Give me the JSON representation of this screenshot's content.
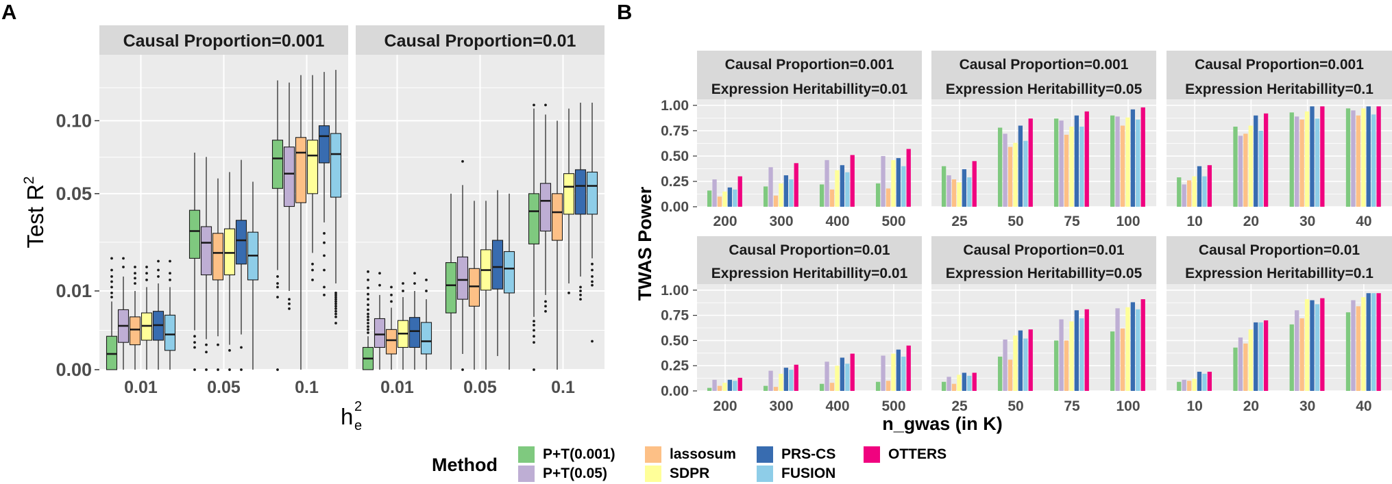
{
  "panel_labels": {
    "a": "A",
    "b": "B"
  },
  "colors": {
    "panel_bg": "#ebebeb",
    "strip_bg": "#d9d9d9",
    "grid": "#ffffff",
    "P+T(0.001)": "#7fc97f",
    "P+T(0.05)": "#beaed4",
    "lassosum": "#fdc086",
    "SDPR": "#ffff99",
    "PRS-CS": "#386cb0",
    "FUSION": "#8ecde8",
    "OTTERS": "#f0027f"
  },
  "legend": {
    "title": "Method",
    "items": [
      "P+T(0.001)",
      "P+T(0.05)",
      "lassosum",
      "SDPR",
      "PRS-CS",
      "FUSION",
      "OTTERS"
    ]
  },
  "chart_data": [
    {
      "id": "A",
      "type": "boxplot",
      "ylabel": "Test R",
      "ylabel_sup": "2",
      "xlabel": "h",
      "xlabel_sup": "2",
      "xlabel_sub": "e",
      "y_ticks": [
        "0.00",
        "0.01",
        "0.05",
        "0.10"
      ],
      "y_tick_values": [
        0.0,
        0.01,
        0.05,
        0.1
      ],
      "y_scale": "sqrt",
      "ylim": [
        0.0,
        0.16
      ],
      "categories": [
        "0.01",
        "0.05",
        "0.1"
      ],
      "methods": [
        "P+T(0.001)",
        "P+T(0.05)",
        "lassosum",
        "SDPR",
        "PRS-CS",
        "FUSION"
      ],
      "facets": [
        {
          "strip": "Causal Proportion=0.001",
          "groups": [
            [
              {
                "median": 0.0004,
                "q1": 0.0,
                "q3": 0.0018,
                "lo": 0.0,
                "hi": 0.0075,
                "out_lo": [],
                "out_hi": [
                  0.0085,
                  0.0095,
                  0.011,
                  0.0125,
                  0.014,
                  0.016,
                  0.02
                ]
              },
              {
                "median": 0.0031,
                "q1": 0.0012,
                "q3": 0.0058,
                "lo": 0.0,
                "hi": 0.014,
                "out_lo": [],
                "out_hi": [
                  0.017,
                  0.02
                ]
              },
              {
                "median": 0.0026,
                "q1": 0.001,
                "q3": 0.0045,
                "lo": 0.0,
                "hi": 0.01,
                "out_lo": [],
                "out_hi": [
                  0.012,
                  0.0135,
                  0.015,
                  0.017
                ]
              },
              {
                "median": 0.0031,
                "q1": 0.0014,
                "q3": 0.0052,
                "lo": 0.0,
                "hi": 0.011,
                "out_lo": [],
                "out_hi": [
                  0.013,
                  0.015,
                  0.017
                ]
              },
              {
                "median": 0.0032,
                "q1": 0.0014,
                "q3": 0.0055,
                "lo": 0.0,
                "hi": 0.012,
                "out_lo": [],
                "out_hi": [
                  0.014,
                  0.016,
                  0.019
                ]
              },
              {
                "median": 0.002,
                "q1": 0.0006,
                "q3": 0.0048,
                "lo": 0.0,
                "hi": 0.011,
                "out_lo": [],
                "out_hi": [
                  0.013,
                  0.015,
                  0.019
                ]
              }
            ],
            [
              {
                "median": 0.031,
                "q1": 0.02,
                "q3": 0.041,
                "lo": 0.0025,
                "hi": 0.076,
                "out_lo": [
                  0.0,
                  0.0008,
                  0.0012,
                  0.0018
                ],
                "out_hi": []
              },
              {
                "median": 0.026,
                "q1": 0.0145,
                "q3": 0.033,
                "lo": 0.0015,
                "hi": 0.073,
                "out_lo": [
                  0.0,
                  0.0005,
                  0.001
                ],
                "out_hi": []
              },
              {
                "median": 0.022,
                "q1": 0.013,
                "q3": 0.03,
                "lo": 0.0018,
                "hi": 0.059,
                "out_lo": [
                  0.0,
                  0.001
                ],
                "out_hi": []
              },
              {
                "median": 0.022,
                "q1": 0.0145,
                "q3": 0.032,
                "lo": 0.001,
                "hi": 0.063,
                "out_lo": [
                  0.0,
                  0.0006
                ],
                "out_hi": []
              },
              {
                "median": 0.027,
                "q1": 0.018,
                "q3": 0.036,
                "lo": 0.002,
                "hi": 0.071,
                "out_lo": [
                  0.0,
                  0.0008
                ],
                "out_hi": []
              },
              {
                "median": 0.021,
                "q1": 0.013,
                "q3": 0.0305,
                "lo": 0.0,
                "hi": 0.057,
                "out_lo": [],
                "out_hi": []
              }
            ],
            [
              {
                "median": 0.072,
                "q1": 0.053,
                "q3": 0.085,
                "lo": 0.016,
                "hi": 0.135,
                "out_lo": [
                  0.0,
                  0.0085,
                  0.011,
                  0.012,
                  0.014
                ],
                "out_hi": []
              },
              {
                "median": 0.062,
                "q1": 0.043,
                "q3": 0.08,
                "lo": 0.01,
                "hi": 0.133,
                "out_lo": [
                  0.006,
                  0.007,
                  0.008
                ],
                "out_hi": []
              },
              {
                "median": 0.076,
                "q1": 0.045,
                "q3": 0.087,
                "lo": 0.0,
                "hi": 0.14,
                "out_lo": [],
                "out_hi": []
              },
              {
                "median": 0.074,
                "q1": 0.05,
                "q3": 0.085,
                "lo": 0.022,
                "hi": 0.14,
                "out_lo": [
                  0.013,
                  0.016,
                  0.018
                ],
                "out_hi": []
              },
              {
                "median": 0.088,
                "q1": 0.069,
                "q3": 0.096,
                "lo": 0.035,
                "hi": 0.143,
                "out_lo": [
                  0.009,
                  0.011,
                  0.016,
                  0.021,
                  0.026,
                  0.03
                ],
                "out_hi": []
              },
              {
                "median": 0.075,
                "q1": 0.048,
                "q3": 0.09,
                "lo": 0.012,
                "hi": 0.145,
                "out_lo": [
                  0.0035,
                  0.0045,
                  0.005,
                  0.0055,
                  0.006,
                  0.0065,
                  0.007,
                  0.0075,
                  0.008,
                  0.0085,
                  0.009,
                  0.0095
                ],
                "out_hi": []
              }
            ]
          ]
        },
        {
          "strip": "Causal Proportion=0.01",
          "groups": [
            [
              {
                "median": 0.0002,
                "q1": 0.0,
                "q3": 0.0008,
                "lo": 0.0,
                "hi": 0.0018,
                "out_lo": [],
                "out_hi": [
                  0.0022,
                  0.0026,
                  0.003,
                  0.0035,
                  0.004,
                  0.0045,
                  0.005,
                  0.0058,
                  0.0068,
                  0.008,
                  0.0092,
                  0.0108,
                  0.013,
                  0.0155
                ]
              },
              {
                "median": 0.002,
                "q1": 0.0008,
                "q3": 0.0042,
                "lo": 0.0,
                "hi": 0.009,
                "out_lo": [],
                "out_hi": [
                  0.0115,
                  0.015
                ]
              },
              {
                "median": 0.0014,
                "q1": 0.0004,
                "q3": 0.0026,
                "lo": 0.0,
                "hi": 0.0062,
                "out_lo": [],
                "out_hi": [
                  0.0075,
                  0.009,
                  0.011
                ]
              },
              {
                "median": 0.0021,
                "q1": 0.0008,
                "q3": 0.0039,
                "lo": 0.0,
                "hi": 0.0085,
                "out_lo": [],
                "out_hi": [
                  0.01,
                  0.012
                ]
              },
              {
                "median": 0.0024,
                "q1": 0.0008,
                "q3": 0.0044,
                "lo": 0.0,
                "hi": 0.01,
                "out_lo": [],
                "out_hi": [
                  0.012,
                  0.015
                ]
              },
              {
                "median": 0.0013,
                "q1": 0.0004,
                "q3": 0.0036,
                "lo": 0.0,
                "hi": 0.008,
                "out_lo": [],
                "out_hi": [
                  0.01,
                  0.013
                ]
              }
            ],
            [
              {
                "median": 0.0115,
                "q1": 0.0052,
                "q3": 0.0185,
                "lo": 0.0,
                "hi": 0.05,
                "out_lo": [],
                "out_hi": []
              },
              {
                "median": 0.013,
                "q1": 0.008,
                "q3": 0.0205,
                "lo": 0.0004,
                "hi": 0.055,
                "out_lo": [
                  0.0
                ],
                "out_hi": [
                  0.07
                ]
              },
              {
                "median": 0.0112,
                "q1": 0.0065,
                "q3": 0.0165,
                "lo": 0.0,
                "hi": 0.046,
                "out_lo": [],
                "out_hi": []
              },
              {
                "median": 0.016,
                "q1": 0.0102,
                "q3": 0.0232,
                "lo": 0.0,
                "hi": 0.046,
                "out_lo": [],
                "out_hi": []
              },
              {
                "median": 0.017,
                "q1": 0.0105,
                "q3": 0.027,
                "lo": 0.0003,
                "hi": 0.052,
                "out_lo": [],
                "out_hi": []
              },
              {
                "median": 0.0165,
                "q1": 0.0095,
                "q3": 0.0225,
                "lo": 0.0,
                "hi": 0.05,
                "out_lo": [],
                "out_hi": []
              }
            ],
            [
              {
                "median": 0.0405,
                "q1": 0.0255,
                "q3": 0.05,
                "lo": 0.0045,
                "hi": 0.11,
                "out_lo": [
                  0.0,
                  0.0012,
                  0.0018,
                  0.0025,
                  0.0032,
                  0.0038
                ],
                "out_hi": [
                  0.113
                ]
              },
              {
                "median": 0.046,
                "q1": 0.031,
                "q3": 0.056,
                "lo": 0.009,
                "hi": 0.105,
                "out_lo": [
                  0.0055,
                  0.0065,
                  0.0075
                ],
                "out_hi": [
                  0.113
                ]
              },
              {
                "median": 0.04,
                "q1": 0.027,
                "q3": 0.05,
                "lo": 0.0,
                "hi": 0.1,
                "out_lo": [],
                "out_hi": []
              },
              {
                "median": 0.054,
                "q1": 0.039,
                "q3": 0.062,
                "lo": 0.012,
                "hi": 0.11,
                "out_lo": [
                  0.0095
                ],
                "out_hi": []
              },
              {
                "median": 0.0545,
                "q1": 0.039,
                "q3": 0.0645,
                "lo": 0.014,
                "hi": 0.115,
                "out_lo": [
                  0.008,
                  0.009,
                  0.01,
                  0.011
                ],
                "out_hi": []
              },
              {
                "median": 0.0545,
                "q1": 0.039,
                "q3": 0.063,
                "lo": 0.02,
                "hi": 0.115,
                "out_lo": [
                  0.0013,
                  0.0115,
                  0.0125,
                  0.014,
                  0.016,
                  0.018
                ],
                "out_hi": []
              }
            ]
          ]
        }
      ]
    },
    {
      "id": "B",
      "type": "bar",
      "ylabel": "TWAS Power",
      "xlabel": "n_gwas (in K)",
      "y_ticks": [
        "0.00",
        "0.25",
        "0.50",
        "0.75",
        "1.00"
      ],
      "y_tick_values": [
        0.0,
        0.25,
        0.5,
        0.75,
        1.0
      ],
      "ylim": [
        0.0,
        1.06
      ],
      "methods": [
        "P+T(0.001)",
        "P+T(0.05)",
        "lassosum",
        "SDPR",
        "PRS-CS",
        "FUSION",
        "OTTERS"
      ],
      "facets": [
        {
          "strip1": "Causal Proportion=0.001",
          "strip2": "Expression Heritabillity=0.01",
          "categories": [
            "200",
            "300",
            "400",
            "500"
          ],
          "values": [
            [
              0.16,
              0.27,
              0.1,
              0.15,
              0.19,
              0.17,
              0.3
            ],
            [
              0.2,
              0.39,
              0.11,
              0.23,
              0.31,
              0.27,
              0.43
            ],
            [
              0.22,
              0.46,
              0.17,
              0.36,
              0.41,
              0.34,
              0.51
            ],
            [
              0.23,
              0.5,
              0.18,
              0.46,
              0.48,
              0.4,
              0.57
            ]
          ]
        },
        {
          "strip1": "Causal Proportion=0.001",
          "strip2": "Expression Heritabillity=0.05",
          "categories": [
            "25",
            "50",
            "75",
            "100"
          ],
          "values": [
            [
              0.4,
              0.31,
              0.27,
              0.24,
              0.37,
              0.29,
              0.45
            ],
            [
              0.78,
              0.72,
              0.59,
              0.63,
              0.8,
              0.65,
              0.87
            ],
            [
              0.87,
              0.85,
              0.71,
              0.79,
              0.9,
              0.79,
              0.94
            ],
            [
              0.9,
              0.89,
              0.8,
              0.88,
              0.96,
              0.86,
              0.98
            ]
          ]
        },
        {
          "strip1": "Causal Proportion=0.001",
          "strip2": "Expression Heritabillity=0.1",
          "categories": [
            "10",
            "20",
            "30",
            "40"
          ],
          "values": [
            [
              0.29,
              0.22,
              0.26,
              0.3,
              0.4,
              0.3,
              0.41
            ],
            [
              0.79,
              0.7,
              0.72,
              0.8,
              0.9,
              0.75,
              0.92
            ],
            [
              0.93,
              0.89,
              0.86,
              0.94,
              0.99,
              0.87,
              0.99
            ],
            [
              0.97,
              0.95,
              0.9,
              0.97,
              0.99,
              0.91,
              0.99
            ]
          ]
        },
        {
          "strip1": "Causal Proportion=0.01",
          "strip2": "Expression Heritabillity=0.01",
          "categories": [
            "200",
            "300",
            "400",
            "500"
          ],
          "values": [
            [
              0.03,
              0.11,
              0.05,
              0.08,
              0.11,
              0.1,
              0.13
            ],
            [
              0.05,
              0.2,
              0.04,
              0.17,
              0.23,
              0.21,
              0.26
            ],
            [
              0.07,
              0.29,
              0.08,
              0.25,
              0.33,
              0.27,
              0.37
            ],
            [
              0.09,
              0.35,
              0.1,
              0.37,
              0.41,
              0.34,
              0.45
            ]
          ]
        },
        {
          "strip1": "Causal Proportion=0.01",
          "strip2": "Expression Heritabillity=0.05",
          "categories": [
            "25",
            "50",
            "75",
            "100"
          ],
          "values": [
            [
              0.09,
              0.14,
              0.07,
              0.16,
              0.18,
              0.15,
              0.18
            ],
            [
              0.34,
              0.51,
              0.31,
              0.55,
              0.6,
              0.52,
              0.61
            ],
            [
              0.5,
              0.71,
              0.5,
              0.69,
              0.8,
              0.72,
              0.81
            ],
            [
              0.59,
              0.82,
              0.62,
              0.83,
              0.88,
              0.81,
              0.91
            ]
          ]
        },
        {
          "strip1": "Causal Proportion=0.01",
          "strip2": "Expression Heritabillity=0.1",
          "categories": [
            "10",
            "20",
            "30",
            "40"
          ],
          "values": [
            [
              0.09,
              0.11,
              0.1,
              0.12,
              0.19,
              0.17,
              0.19
            ],
            [
              0.43,
              0.53,
              0.47,
              0.61,
              0.68,
              0.68,
              0.7
            ],
            [
              0.66,
              0.8,
              0.72,
              0.91,
              0.9,
              0.86,
              0.92
            ],
            [
              0.78,
              0.9,
              0.84,
              0.93,
              0.97,
              0.97,
              0.97
            ]
          ]
        }
      ]
    }
  ]
}
